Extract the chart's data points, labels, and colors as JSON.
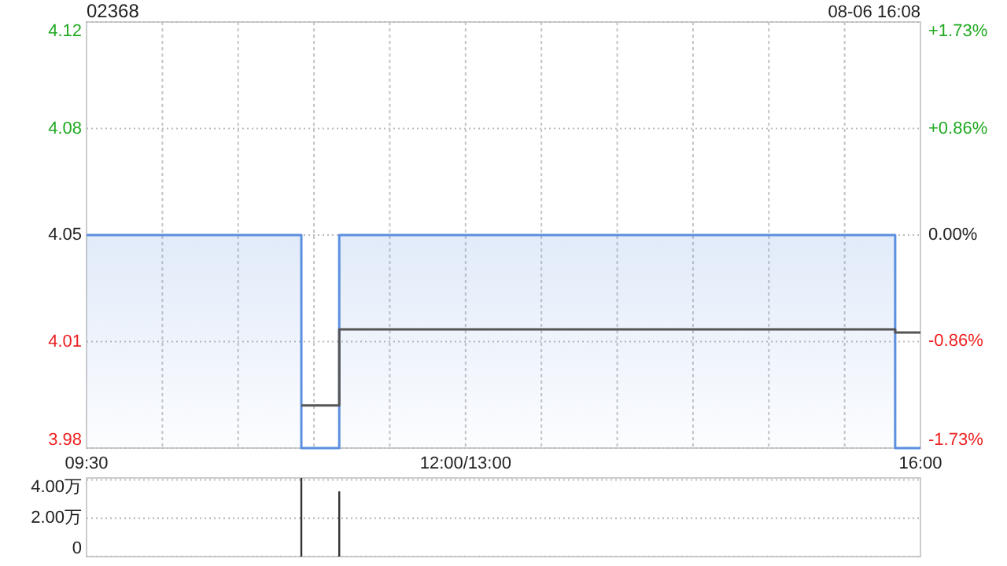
{
  "chart_data": [
    {
      "type": "step",
      "title": "02368",
      "subtitle": "08-06 16:08",
      "categories": [
        "09:30",
        null,
        null,
        null,
        null,
        null,
        null,
        null,
        null,
        null,
        null,
        null,
        null,
        null,
        null,
        null,
        null,
        null,
        null,
        null,
        null,
        null,
        null,
        null,
        null,
        null,
        null,
        null,
        null,
        null,
        "12:00/13:00",
        null,
        null,
        null,
        null,
        null,
        null,
        null,
        null,
        null,
        null,
        null,
        null,
        null,
        null,
        null,
        null,
        null,
        null,
        null,
        null,
        null,
        null,
        null,
        null,
        null,
        null,
        null,
        null,
        null,
        null,
        null,
        null,
        null,
        null,
        null,
        "16:00"
      ],
      "ylim": [
        3.98,
        4.12
      ],
      "yticks": [
        {
          "value": 3.98,
          "label": "3.98"
        },
        {
          "value": 4.015,
          "label": "4.01"
        },
        {
          "value": 4.05,
          "label": "4.05"
        },
        {
          "value": 4.085,
          "label": "4.08"
        },
        {
          "value": 4.12,
          "label": "4.12"
        }
      ],
      "y2lim": [
        -1.73,
        1.73
      ],
      "y2ticks": [
        {
          "value": -1.73,
          "label": "-1.73%"
        },
        {
          "value": -0.86,
          "label": "-0.86%"
        },
        {
          "value": 0,
          "label": "0.00%"
        },
        {
          "value": 0.86,
          "label": "+0.86%"
        },
        {
          "value": 1.73,
          "label": "+1.73%"
        }
      ],
      "grid": true,
      "series": [
        {
          "type": "area",
          "color": "#5b8fe0",
          "values": [
            4.05,
            4.05,
            4.05,
            4.05,
            4.05,
            4.05,
            4.05,
            4.05,
            4.05,
            4.05,
            4.05,
            4.05,
            4.05,
            4.05,
            4.05,
            4.05,
            4.05,
            3.98,
            3.98,
            3.98,
            4.05,
            4.05,
            4.05,
            4.05,
            4.05,
            4.05,
            4.05,
            4.05,
            4.05,
            4.05,
            4.05,
            4.05,
            4.05,
            4.05,
            4.05,
            4.05,
            4.05,
            4.05,
            4.05,
            4.05,
            4.05,
            4.05,
            4.05,
            4.05,
            4.05,
            4.05,
            4.05,
            4.05,
            4.05,
            4.05,
            4.05,
            4.05,
            4.05,
            4.05,
            4.05,
            4.05,
            4.05,
            4.05,
            4.05,
            4.05,
            4.05,
            4.05,
            4.05,
            4.05,
            3.98,
            3.98,
            3.98
          ]
        },
        {
          "color": "#555555",
          "values": [
            null,
            null,
            null,
            null,
            null,
            null,
            null,
            null,
            null,
            null,
            null,
            null,
            null,
            null,
            null,
            null,
            null,
            3.994,
            3.994,
            3.994,
            4.019,
            4.019,
            4.019,
            4.019,
            4.019,
            4.019,
            4.019,
            4.019,
            4.019,
            4.019,
            4.019,
            4.019,
            4.019,
            4.019,
            4.019,
            4.019,
            4.019,
            4.019,
            4.019,
            4.019,
            4.019,
            4.019,
            4.019,
            4.019,
            4.019,
            4.019,
            4.019,
            4.019,
            4.019,
            4.019,
            4.019,
            4.019,
            4.019,
            4.019,
            4.019,
            4.019,
            4.019,
            4.019,
            4.019,
            4.019,
            4.019,
            4.019,
            4.019,
            4.019,
            4.018,
            4.018,
            4.018
          ]
        }
      ]
    },
    {
      "type": "bar",
      "categories": [
        null,
        null,
        null,
        null,
        null,
        null,
        null,
        null,
        null,
        null,
        null,
        null,
        null,
        null,
        null,
        null,
        null,
        null,
        null,
        null,
        null,
        null,
        null,
        null,
        null,
        null,
        null,
        null,
        null,
        null,
        null,
        null,
        null,
        null,
        null,
        null,
        null,
        null,
        null,
        null,
        null,
        null,
        null,
        null,
        null,
        null,
        null,
        null,
        null,
        null,
        null,
        null,
        null,
        null,
        null,
        null,
        null,
        null,
        null,
        null,
        null,
        null,
        null,
        null,
        null,
        null,
        null
      ],
      "values": [
        null,
        null,
        null,
        null,
        null,
        null,
        null,
        null,
        null,
        null,
        null,
        null,
        null,
        null,
        null,
        null,
        null,
        4.1,
        null,
        null,
        3.4,
        null,
        null,
        null,
        null,
        null,
        null,
        null,
        null,
        null,
        null,
        null,
        null,
        null,
        null,
        null,
        null,
        null,
        null,
        null,
        null,
        null,
        null,
        null,
        null,
        null,
        null,
        null,
        null,
        null,
        null,
        null,
        null,
        null,
        null,
        null,
        null,
        null,
        null,
        null,
        null,
        null,
        null,
        null,
        null,
        null,
        null
      ],
      "color": "#333333",
      "ylim": [
        0,
        4.1
      ],
      "yticks": [
        {
          "value": 0,
          "label": "0"
        },
        {
          "value": 2,
          "label": "2.00万"
        },
        {
          "value": 4,
          "label": "4.00万"
        }
      ],
      "grid": "y",
      "tick_labels": "y"
    }
  ]
}
